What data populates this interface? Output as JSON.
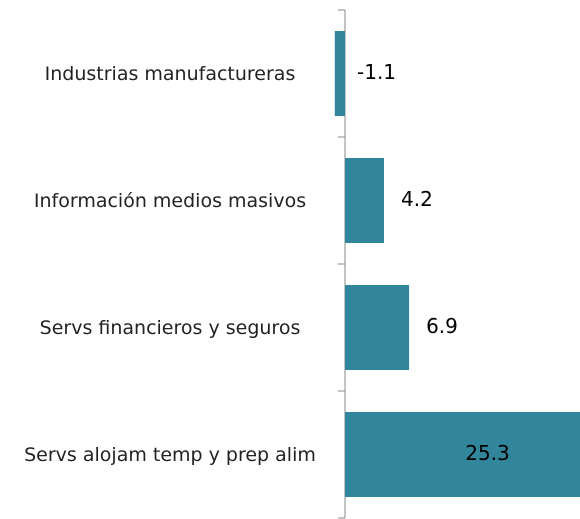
{
  "chart_data": {
    "type": "bar",
    "orientation": "horizontal",
    "categories": [
      "Industrias manufactureras",
      "Información medios masivos",
      "Servs financieros y seguros",
      "Servs alojam temp y prep alim"
    ],
    "values": [
      -1.1,
      4.2,
      6.9,
      25.3
    ],
    "color": "#31869b"
  }
}
